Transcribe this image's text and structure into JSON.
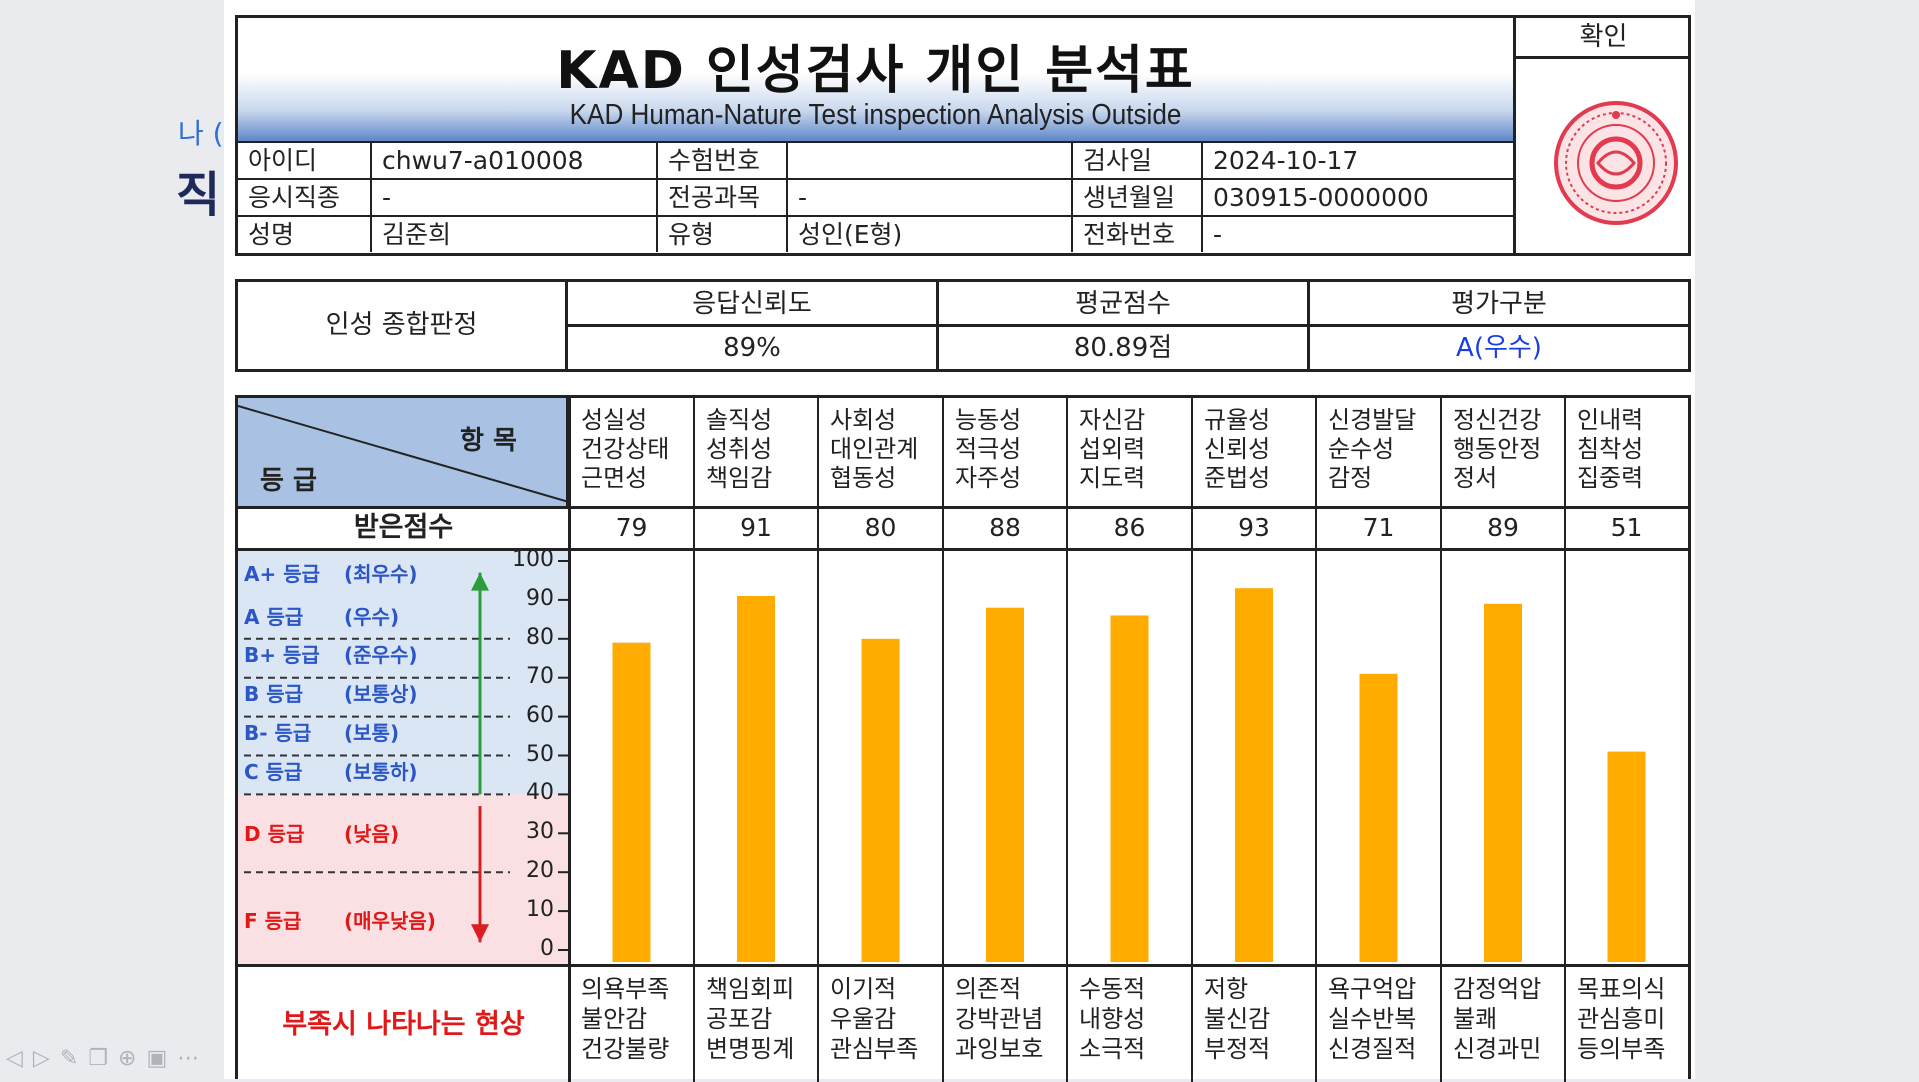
{
  "background": {
    "peek_text": "나 (",
    "peek_title": "직"
  },
  "header": {
    "title": "KAD 인성검사 개인 분석표",
    "subtitle": "KAD Human-Nature Test inspection Analysis Outside",
    "approve_label": "확인"
  },
  "info": {
    "rows": [
      [
        {
          "label": "아이디",
          "value": "chwu7-a010008"
        },
        {
          "label": "수험번호",
          "value": ""
        },
        {
          "label": "검사일",
          "value": "2024-10-17"
        }
      ],
      [
        {
          "label": "응시직종",
          "value": "-"
        },
        {
          "label": "전공과목",
          "value": "-"
        },
        {
          "label": "생년월일",
          "value": "030915-0000000"
        }
      ],
      [
        {
          "label": "성명",
          "value": "김준희"
        },
        {
          "label": "유형",
          "value": "성인(E형)"
        },
        {
          "label": "전화번호",
          "value": "-"
        }
      ]
    ]
  },
  "summary": {
    "label": "인성 종합판정",
    "columns": [
      {
        "header": "응답신뢰도",
        "value": "89%"
      },
      {
        "header": "평균점수",
        "value": "80.89점"
      },
      {
        "header": "평가구분",
        "value": "A(우수)"
      }
    ],
    "grade_color": "#1a3ee0"
  },
  "table": {
    "corner_item": "항  목",
    "corner_grade": "등  급",
    "score_label": "받은점수",
    "lack_label": "부족시 나타나는 현상",
    "lack_color": "#e01818",
    "bar_color": "#ffab00",
    "grades": [
      {
        "name": "A+ 등급",
        "desc": "(최우수)",
        "color": "#2b56c5"
      },
      {
        "name": "A  등급",
        "desc": "(우수)",
        "color": "#2b56c5"
      },
      {
        "name": "B+ 등급",
        "desc": "(준우수)",
        "color": "#2b56c5"
      },
      {
        "name": "B  등급",
        "desc": "(보통상)",
        "color": "#2b56c5"
      },
      {
        "name": "B- 등급",
        "desc": "(보통)",
        "color": "#2b56c5"
      },
      {
        "name": "C  등급",
        "desc": "(보통하)",
        "color": "#2b56c5"
      },
      {
        "name": "D  등급",
        "desc": "(낮음)",
        "color": "#e01818"
      },
      {
        "name": "F  등급",
        "desc": "(매우낮음)",
        "color": "#e01818"
      }
    ],
    "yticks": [
      "100",
      "90",
      "80",
      "70",
      "60",
      "50",
      "40",
      "30",
      "20",
      "10",
      "0"
    ],
    "categories": [
      {
        "head": "성실성\n건강상태\n근면성",
        "score": "79",
        "lack": "의욕부족\n불안감\n건강불량"
      },
      {
        "head": "솔직성\n성취성\n책임감",
        "score": "91",
        "lack": "책임회피\n공포감\n변명핑계"
      },
      {
        "head": "사회성\n대인관계\n협동성",
        "score": "80",
        "lack": "이기적\n우울감\n관심부족"
      },
      {
        "head": "능동성\n적극성\n자주성",
        "score": "88",
        "lack": "의존적\n강박관념\n과잉보호"
      },
      {
        "head": "자신감\n섭외력\n지도력",
        "score": "86",
        "lack": "수동적\n내향성\n소극적"
      },
      {
        "head": "규율성\n신뢰성\n준법성",
        "score": "93",
        "lack": "저항\n불신감\n부정적"
      },
      {
        "head": "신경발달\n순수성\n감정",
        "score": "71",
        "lack": "욕구억압\n실수반복\n신경질적"
      },
      {
        "head": "정신건강\n행동안정\n정서",
        "score": "89",
        "lack": "감정억압\n불쾌\n신경과민"
      },
      {
        "head": "인내력\n침착성\n집중력",
        "score": "51",
        "lack": "목표의식\n관심흥미\n등의부족"
      }
    ]
  },
  "chart_data": {
    "type": "bar",
    "categories": [
      "성실성",
      "솔직성",
      "사회성",
      "능동성",
      "자신감",
      "규율성",
      "신경발달",
      "정신건강",
      "인내력"
    ],
    "values": [
      79,
      91,
      80,
      88,
      86,
      93,
      71,
      89,
      51
    ],
    "ylim": [
      0,
      100
    ],
    "yticks": [
      0,
      10,
      20,
      30,
      40,
      50,
      60,
      70,
      80,
      90,
      100
    ],
    "color": "#ffab00"
  },
  "toolbar": {
    "icons": [
      "back-icon",
      "forward-icon",
      "pen-icon",
      "copy-icon",
      "zoom-icon",
      "screen-icon",
      "more-icon"
    ]
  }
}
